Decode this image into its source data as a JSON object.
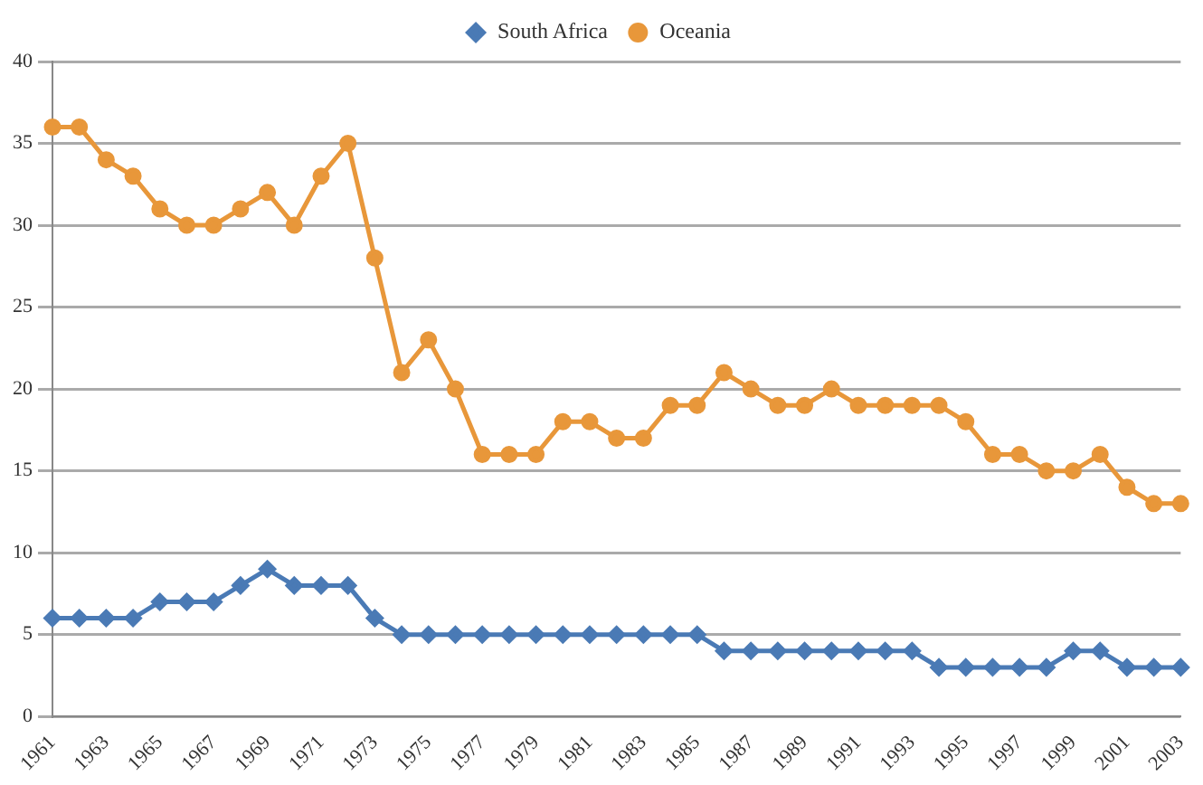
{
  "chart_data": {
    "type": "line",
    "categories": [
      "1961",
      null,
      "1963",
      null,
      "1965",
      null,
      "1967",
      null,
      "1969",
      null,
      "1971",
      null,
      "1973",
      null,
      "1975",
      null,
      "1977",
      null,
      "1979",
      null,
      "1981",
      null,
      "1983",
      null,
      "1985",
      null,
      "1987",
      null,
      "1989",
      null,
      "1991",
      null,
      "1993",
      null,
      "1995",
      null,
      "1997",
      null,
      "1999",
      null,
      "2001",
      null,
      "2003"
    ],
    "series": [
      {
        "name": "South Africa",
        "color": "#4a7ab5",
        "marker": "diamond",
        "values": [
          6,
          6,
          6,
          6,
          7,
          7,
          7,
          8,
          9,
          8,
          8,
          8,
          6,
          5,
          5,
          5,
          5,
          5,
          5,
          5,
          5,
          5,
          5,
          5,
          5,
          4,
          4,
          4,
          4,
          4,
          4,
          4,
          4,
          3,
          3,
          3,
          3,
          3,
          4,
          4,
          3,
          3,
          3
        ]
      },
      {
        "name": "Oceania",
        "color": "#e8973a",
        "marker": "circle",
        "values": [
          36,
          36,
          34,
          33,
          31,
          30,
          30,
          31,
          32,
          30,
          33,
          35,
          28,
          21,
          23,
          20,
          16,
          16,
          16,
          18,
          18,
          17,
          17,
          19,
          19,
          21,
          20,
          19,
          19,
          20,
          19,
          19,
          19,
          19,
          18,
          16,
          16,
          15,
          15,
          16,
          14,
          13,
          13
        ]
      }
    ],
    "ylim": [
      0,
      40
    ],
    "yticks": [
      0,
      5,
      10,
      15,
      20,
      25,
      30,
      35,
      40
    ],
    "grid": "y",
    "legend": "top",
    "line_style": "solid"
  }
}
